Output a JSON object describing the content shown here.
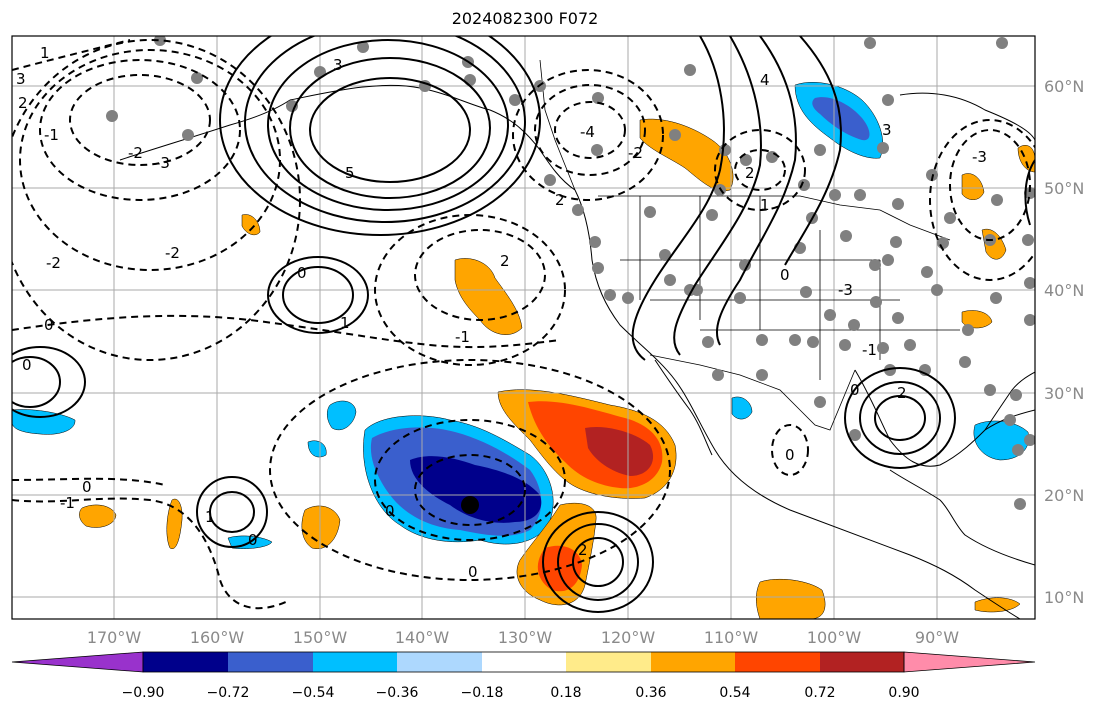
{
  "title": "2024082300 F072",
  "map": {
    "lon_ticks": [
      "170°W",
      "160°W",
      "150°W",
      "140°W",
      "130°W",
      "120°W",
      "110°W",
      "100°W",
      "90°W"
    ],
    "lat_ticks": [
      "60°N",
      "50°N",
      "40°N",
      "30°N",
      "20°N",
      "10°N"
    ],
    "contour_labels": [
      "1",
      "2",
      "3",
      "-1",
      "-2",
      "-3",
      "-4",
      "3",
      "5",
      "0",
      "1",
      "-2",
      "-1",
      "2",
      "0",
      "0",
      "-2",
      "0",
      "0",
      "-1",
      "1",
      "0",
      "2",
      "2",
      "4",
      "-3",
      "0",
      "3",
      "-2",
      "-3",
      "2",
      "0",
      "0",
      "-1",
      "2",
      "1",
      "0"
    ]
  },
  "colorbar": {
    "labels": [
      "−0.90",
      "−0.72",
      "−0.54",
      "−0.36",
      "−0.18",
      "0.18",
      "0.36",
      "0.54",
      "0.72",
      "0.90"
    ],
    "colors": [
      "#9932cc",
      "#00008b",
      "#3a5fcd",
      "#00bfff",
      "#add8fe",
      "#ffffff",
      "#ffeb8a",
      "#ffa500",
      "#ff4500",
      "#b22222",
      "#ff8caa"
    ],
    "extend": "both"
  }
}
